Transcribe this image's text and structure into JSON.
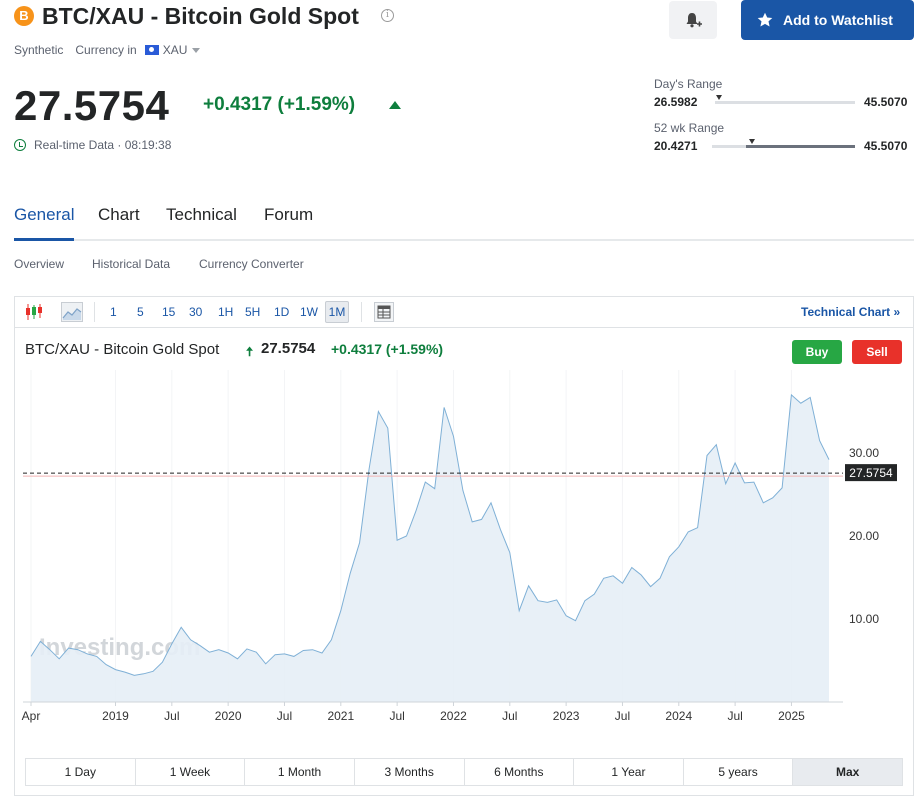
{
  "header": {
    "logo_letter": "B",
    "title": "BTC/XAU - Bitcoin Gold Spot",
    "info_glyph": "i",
    "watchlist_label": "Add to Watchlist",
    "type": "Synthetic",
    "currency_label": "Currency in",
    "currency": "XAU"
  },
  "quote": {
    "price": "27.5754",
    "change": "+0.4317 (+1.59%)",
    "realtime": "Real-time Data · 08:19:38"
  },
  "ranges": {
    "day_label": "Day's Range",
    "day_low": "26.5982",
    "day_high": "45.5070",
    "day_position": 0.0,
    "wk_label": "52 wk Range",
    "wk_low": "20.4271",
    "wk_high": "45.5070",
    "wk_position": 0.28,
    "wk_fill_start": 0.24
  },
  "tabs": [
    "General",
    "Chart",
    "Technical",
    "Forum"
  ],
  "subtabs": [
    "Overview",
    "Historical Data",
    "Currency Converter"
  ],
  "toolbar": {
    "intervals": [
      "1",
      "5",
      "15",
      "30",
      "1H",
      "5H",
      "1D",
      "1W",
      "1M"
    ],
    "technical_chart": "Technical Chart »"
  },
  "chart_header": {
    "name": "BTC/XAU - Bitcoin Gold Spot",
    "arrow": "🠅",
    "price": "27.5754",
    "change": "+0.4317 (+1.59%)",
    "buy": "Buy",
    "sell": "Sell"
  },
  "watermark": "Investing.com",
  "periods": [
    "1 Day",
    "1 Week",
    "1 Month",
    "3 Months",
    "6 Months",
    "1 Year",
    "5 years",
    "Max"
  ],
  "colors": {
    "accent": "#1a56a6",
    "up": "#0e7e3d",
    "buy": "#27a744",
    "sell": "#e8312a",
    "line": "#7fb0d6",
    "area": "#e5eef6"
  },
  "chart_data": {
    "type": "area",
    "x_labels": [
      "Apr",
      "2019",
      "Jul",
      "2020",
      "Jul",
      "2021",
      "Jul",
      "2022",
      "Jul",
      "2023",
      "Jul",
      "2024",
      "Jul",
      "2025"
    ],
    "x_label_t": [
      0,
      9,
      15,
      21,
      27,
      33,
      39,
      45,
      51,
      57,
      63,
      69,
      75,
      81
    ],
    "y_ticks": [
      10,
      20,
      30
    ],
    "y_tick_labels": [
      "10.00",
      "20.00",
      "30.00"
    ],
    "ylim": [
      0,
      40
    ],
    "last_price": 27.5754,
    "last_price_label": "27.5754",
    "values": [
      5.5,
      7.3,
      6.3,
      5.2,
      6.5,
      6.3,
      5.8,
      5.5,
      4.5,
      3.9,
      3.6,
      3.2,
      3.4,
      3.7,
      4.8,
      7.0,
      9.0,
      7.5,
      6.8,
      6.0,
      6.3,
      5.9,
      5.2,
      6.4,
      6.0,
      4.6,
      5.7,
      5.8,
      5.5,
      6.2,
      6.3,
      5.9,
      7.5,
      11.0,
      15.5,
      19.2,
      28.0,
      35.0,
      33.0,
      19.5,
      20.0,
      23.0,
      26.5,
      25.7,
      35.5,
      32.0,
      25.5,
      21.7,
      22.0,
      24.0,
      20.8,
      18.0,
      11.0,
      14.0,
      12.2,
      12.0,
      12.3,
      10.4,
      9.8,
      12.2,
      13.0,
      14.9,
      15.2,
      14.3,
      16.2,
      15.3,
      13.9,
      14.9,
      17.5,
      18.7,
      20.5,
      21.0,
      29.7,
      31.0,
      26.3,
      28.8,
      26.4,
      26.5,
      24.0,
      24.6,
      25.8,
      37.0,
      36.0,
      36.7,
      31.5,
      29.2
    ]
  }
}
